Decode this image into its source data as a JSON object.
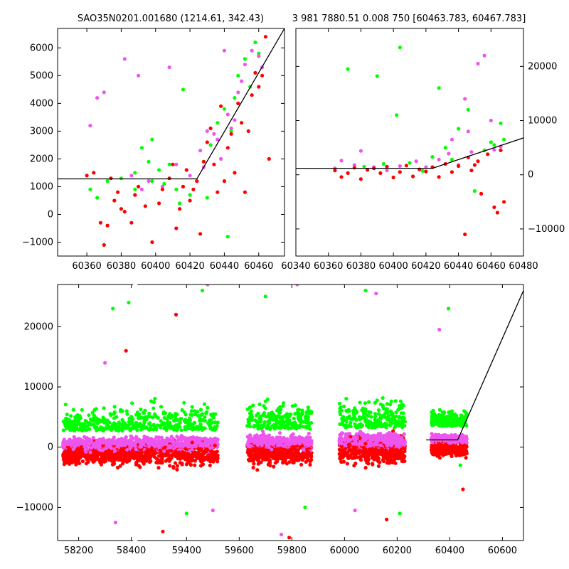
{
  "colors": {
    "background": "#ffffff",
    "green": "#00ff00",
    "magenta": "#ee55ee",
    "red": "#ff0000",
    "fit_line": "#000000",
    "axes": "#000000"
  },
  "chart_data": [
    {
      "type": "scatter",
      "title": "SAO35N0201.001680 (1214.61, 342.43)",
      "xlim": [
        60343,
        60475
      ],
      "ylim": [
        -1500,
        6700
      ],
      "x_ticks": [
        60360,
        60380,
        60400,
        60420,
        60440,
        60460
      ],
      "y_ticks": [
        -1000,
        0,
        1000,
        2000,
        3000,
        4000,
        5000,
        6000
      ],
      "y_axis_side": "left",
      "grid": false,
      "fit_line": [
        [
          60343,
          1280
        ],
        [
          60424,
          1280
        ],
        [
          60475,
          6700
        ]
      ],
      "series": [
        {
          "color": "green",
          "points": [
            [
              60362,
              900
            ],
            [
              60366,
              600
            ],
            [
              60372,
              1200
            ],
            [
              60380,
              1300
            ],
            [
              60388,
              1500
            ],
            [
              60392,
              2400
            ],
            [
              60396,
              1900
            ],
            [
              60398,
              2700
            ],
            [
              60402,
              1600
            ],
            [
              60405,
              1100
            ],
            [
              60408,
              1800
            ],
            [
              60412,
              900
            ],
            [
              60416,
              4500
            ],
            [
              60420,
              700
            ],
            [
              60428,
              1900
            ],
            [
              60432,
              2500
            ],
            [
              60436,
              3300
            ],
            [
              60440,
              3800
            ],
            [
              60444,
              3000
            ],
            [
              60446,
              4200
            ],
            [
              60448,
              5000
            ],
            [
              60452,
              5600
            ],
            [
              60455,
              4600
            ],
            [
              60458,
              6200
            ],
            [
              60460,
              5800
            ],
            [
              60442,
              -800
            ],
            [
              60430,
              600
            ],
            [
              60414,
              400
            ],
            [
              60398,
              1200
            ],
            [
              60388,
              900
            ]
          ]
        },
        {
          "color": "magenta",
          "points": [
            [
              60362,
              3200
            ],
            [
              60366,
              4200
            ],
            [
              60370,
              4400
            ],
            [
              60382,
              5600
            ],
            [
              60386,
              1400
            ],
            [
              60390,
              5000
            ],
            [
              60392,
              900
            ],
            [
              60396,
              1200
            ],
            [
              60404,
              1000
            ],
            [
              60408,
              5300
            ],
            [
              60412,
              1800
            ],
            [
              60420,
              1400
            ],
            [
              60426,
              2300
            ],
            [
              60430,
              3000
            ],
            [
              60432,
              6900
            ],
            [
              60436,
              2700
            ],
            [
              60440,
              5900
            ],
            [
              60442,
              3600
            ],
            [
              60444,
              3100
            ],
            [
              60446,
              3400
            ],
            [
              60448,
              4400
            ],
            [
              60450,
              4800
            ],
            [
              60452,
              5400
            ],
            [
              60456,
              5900
            ],
            [
              60460,
              5700
            ],
            [
              60462,
              5300
            ],
            [
              60438,
              2000
            ],
            [
              60434,
              2900
            ],
            [
              60428,
              1700
            ],
            [
              60424,
              1200
            ]
          ]
        },
        {
          "color": "red",
          "points": [
            [
              60360,
              1400
            ],
            [
              60364,
              1500
            ],
            [
              60368,
              -300
            ],
            [
              60370,
              -1100
            ],
            [
              60372,
              -400
            ],
            [
              60374,
              1300
            ],
            [
              60376,
              500
            ],
            [
              60378,
              800
            ],
            [
              60380,
              200
            ],
            [
              60382,
              100
            ],
            [
              60386,
              -300
            ],
            [
              60388,
              700
            ],
            [
              60390,
              1000
            ],
            [
              60394,
              300
            ],
            [
              60398,
              -1000
            ],
            [
              60402,
              400
            ],
            [
              60404,
              900
            ],
            [
              60408,
              1300
            ],
            [
              60410,
              1800
            ],
            [
              60412,
              -500
            ],
            [
              60414,
              200
            ],
            [
              60416,
              1000
            ],
            [
              60418,
              1600
            ],
            [
              60420,
              500
            ],
            [
              60422,
              900
            ],
            [
              60424,
              1200
            ],
            [
              60426,
              -700
            ],
            [
              60428,
              1900
            ],
            [
              60430,
              2600
            ],
            [
              60432,
              3100
            ],
            [
              60434,
              1800
            ],
            [
              60436,
              800
            ],
            [
              60438,
              3900
            ],
            [
              60440,
              1200
            ],
            [
              60442,
              2400
            ],
            [
              60444,
              2900
            ],
            [
              60446,
              1500
            ],
            [
              60448,
              4000
            ],
            [
              60450,
              3300
            ],
            [
              60452,
              800
            ],
            [
              60454,
              3000
            ],
            [
              60456,
              4300
            ],
            [
              60458,
              5100
            ],
            [
              60460,
              4600
            ],
            [
              60462,
              5000
            ],
            [
              60464,
              6400
            ],
            [
              60466,
              2000
            ]
          ]
        }
      ]
    },
    {
      "type": "scatter",
      "title": "3 981 7880.51 0.008 750 [60463.783, 60467.783]",
      "xlim": [
        60340,
        60480
      ],
      "ylim": [
        -15000,
        27000
      ],
      "x_ticks": [
        60340,
        60360,
        60380,
        60400,
        60420,
        60440,
        60460,
        60480
      ],
      "y_ticks": [
        -10000,
        0,
        10000,
        20000
      ],
      "y_axis_side": "right",
      "grid": false,
      "fit_line": [
        [
          60340,
          1200
        ],
        [
          60424,
          1200
        ],
        [
          60480,
          6800
        ]
      ],
      "series": [
        {
          "color": "green",
          "points": [
            [
              60372,
              19500
            ],
            [
              60382,
              1500
            ],
            [
              60390,
              18200
            ],
            [
              60394,
              2000
            ],
            [
              60402,
              11000
            ],
            [
              60404,
              23500
            ],
            [
              60410,
              2200
            ],
            [
              60418,
              700
            ],
            [
              60424,
              3300
            ],
            [
              60428,
              16000
            ],
            [
              60432,
              5000
            ],
            [
              60436,
              2800
            ],
            [
              60440,
              8500
            ],
            [
              60446,
              12000
            ],
            [
              60450,
              -3000
            ],
            [
              60456,
              4500
            ],
            [
              60460,
              6000
            ],
            [
              60466,
              9500
            ],
            [
              60462,
              5500
            ],
            [
              60468,
              6500
            ]
          ]
        },
        {
          "color": "magenta",
          "points": [
            [
              60364,
              1200
            ],
            [
              60368,
              2600
            ],
            [
              60376,
              1800
            ],
            [
              60380,
              4400
            ],
            [
              60388,
              1400
            ],
            [
              60396,
              800
            ],
            [
              60404,
              1600
            ],
            [
              60414,
              2500
            ],
            [
              60420,
              1400
            ],
            [
              60428,
              2800
            ],
            [
              60434,
              3900
            ],
            [
              60440,
              1800
            ],
            [
              60444,
              14000
            ],
            [
              60446,
              8000
            ],
            [
              60452,
              20500
            ],
            [
              60456,
              22000
            ],
            [
              60460,
              10000
            ],
            [
              60462,
              4600
            ],
            [
              60466,
              5200
            ],
            [
              60436,
              6500
            ],
            [
              60448,
              4200
            ]
          ]
        },
        {
          "color": "red",
          "points": [
            [
              60364,
              800
            ],
            [
              60368,
              -400
            ],
            [
              60372,
              300
            ],
            [
              60376,
              1300
            ],
            [
              60380,
              -800
            ],
            [
              60384,
              900
            ],
            [
              60388,
              1200
            ],
            [
              60392,
              300
            ],
            [
              60396,
              1500
            ],
            [
              60400,
              -500
            ],
            [
              60404,
              500
            ],
            [
              60408,
              1700
            ],
            [
              60412,
              -300
            ],
            [
              60416,
              1000
            ],
            [
              60420,
              600
            ],
            [
              60424,
              1400
            ],
            [
              60428,
              -400
            ],
            [
              60432,
              2000
            ],
            [
              60436,
              500
            ],
            [
              60440,
              1600
            ],
            [
              60444,
              -11000
            ],
            [
              60448,
              800
            ],
            [
              60452,
              2500
            ],
            [
              60454,
              -3500
            ],
            [
              60458,
              3800
            ],
            [
              60462,
              -6000
            ],
            [
              60464,
              -7000
            ],
            [
              60466,
              4500
            ],
            [
              60468,
              -5000
            ],
            [
              60446,
              3200
            ],
            [
              60450,
              1800
            ]
          ]
        }
      ]
    },
    {
      "type": "scatter",
      "xlim": [
        58120,
        60680
      ],
      "ylim": [
        -15500,
        27000
      ],
      "x_ticks": [
        58200,
        58400,
        59400,
        59600,
        59800,
        60000,
        60200,
        60400,
        60600
      ],
      "y_ticks": [
        -10000,
        0,
        10000,
        20000
      ],
      "y_axis_side": "left",
      "grid": false,
      "fit_line": [
        [
          60310,
          1200
        ],
        [
          60430,
          1200
        ],
        [
          60680,
          26000
        ]
      ],
      "clusters": [
        {
          "x_range": [
            58140,
            58415
          ],
          "y_mean": 200,
          "y_spread": 3000,
          "outliers": [
            [
              58330,
              23000
            ],
            [
              58340,
              -12500
            ],
            [
              58380,
              16000
            ],
            [
              58390,
              24000
            ],
            [
              58300,
              14000
            ]
          ]
        },
        {
          "x_range": [
            59205,
            59520
          ],
          "y_mean": 300,
          "y_spread": 3500,
          "outliers": [
            [
              59460,
              26000
            ],
            [
              59480,
              27000
            ],
            [
              59310,
              -14000
            ],
            [
              59400,
              -11000
            ],
            [
              59500,
              -10500
            ],
            [
              59360,
              22000
            ]
          ]
        },
        {
          "x_range": [
            59630,
            59875
          ],
          "y_mean": 500,
          "y_spread": 3500,
          "outliers": [
            [
              59700,
              25000
            ],
            [
              59760,
              -14500
            ],
            [
              59790,
              -15000
            ],
            [
              59850,
              -10000
            ],
            [
              59820,
              27000
            ]
          ]
        },
        {
          "x_range": [
            59980,
            60230
          ],
          "y_mean": 700,
          "y_spread": 3800,
          "outliers": [
            [
              60080,
              26000
            ],
            [
              60120,
              25500
            ],
            [
              60160,
              -12000
            ],
            [
              60210,
              -11000
            ],
            [
              60040,
              -10500
            ]
          ]
        },
        {
          "x_range": [
            60330,
            60465
          ],
          "y_mean": 1000,
          "y_spread": 2000,
          "outliers": [
            [
              60395,
              23000
            ],
            [
              60360,
              19500
            ],
            [
              60450,
              -7000
            ],
            [
              60440,
              -3000
            ]
          ]
        }
      ]
    }
  ]
}
